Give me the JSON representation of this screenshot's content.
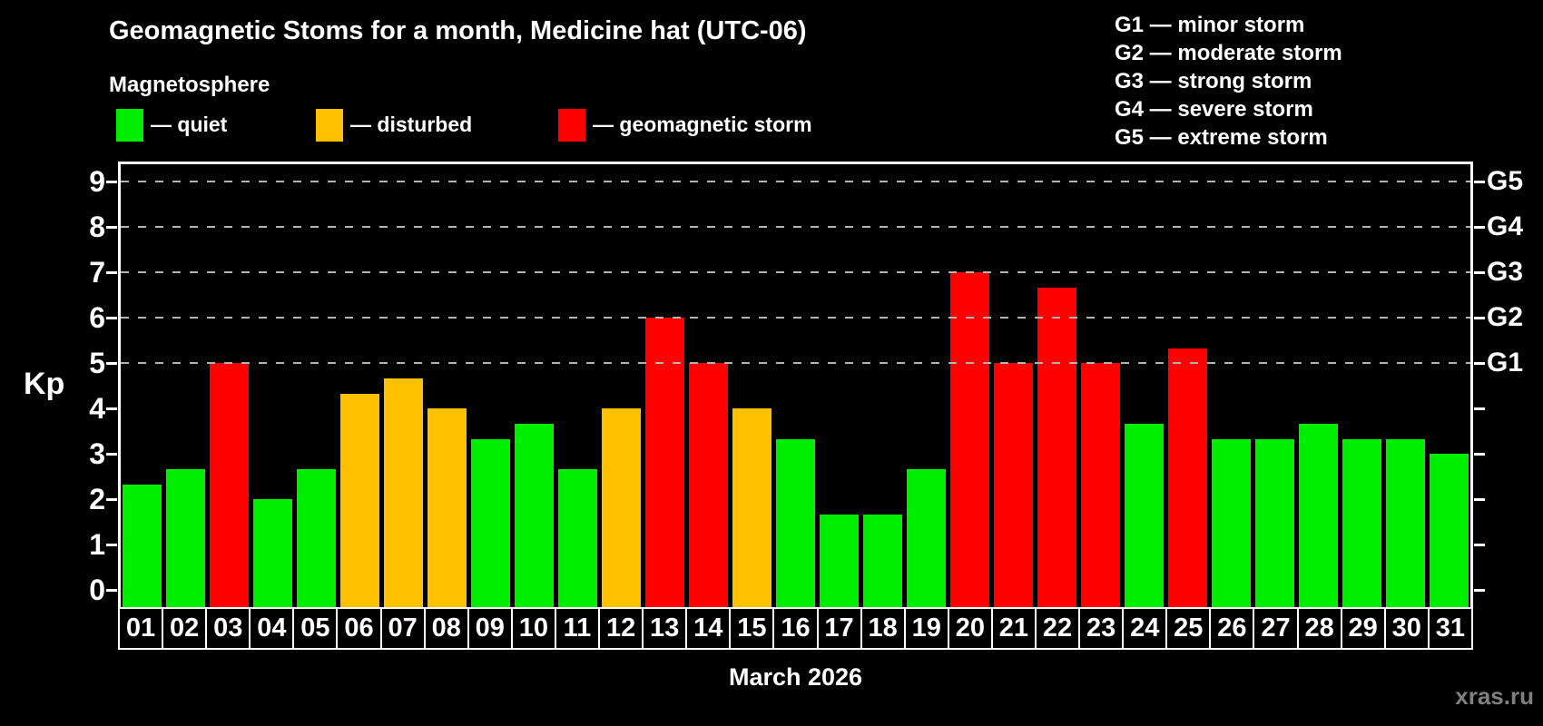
{
  "title": "Geomagnetic Stoms for a month, Medicine hat (UTC-06)",
  "subtitle": "Magnetosphere",
  "status_legend": [
    {
      "name": "quiet",
      "label": "— quiet",
      "color": "#00ee00"
    },
    {
      "name": "disturbed",
      "label": "— disturbed",
      "color": "#ffc000"
    },
    {
      "name": "storm",
      "label": "— geomagnetic storm",
      "color": "#ff0000"
    }
  ],
  "g_scale_legend": [
    "G1 — minor storm",
    "G2 — moderate storm",
    "G3 — strong storm",
    "G4 — severe storm",
    "G5 — extreme storm"
  ],
  "y_axis_label": "Kp",
  "x_axis_label": "March 2026",
  "watermark": "xras.ru",
  "chart_data": {
    "type": "bar",
    "title": "Geomagnetic Stoms for a month, Medicine hat (UTC-06)",
    "xlabel": "March 2026",
    "ylabel": "Kp",
    "ylim": [
      0,
      9
    ],
    "y_ticks": [
      0,
      1,
      2,
      3,
      4,
      5,
      6,
      7,
      8,
      9
    ],
    "gridlines_at_kp": [
      5,
      6,
      7,
      8,
      9
    ],
    "grid_style": "dashed gray horizontal, drawn only at storm levels G1–G5",
    "right_axis_labels": [
      {
        "label": "G1",
        "kp": 5
      },
      {
        "label": "G2",
        "kp": 6
      },
      {
        "label": "G3",
        "kp": 7
      },
      {
        "label": "G4",
        "kp": 8
      },
      {
        "label": "G5",
        "kp": 9
      }
    ],
    "categories": [
      "01",
      "02",
      "03",
      "04",
      "05",
      "06",
      "07",
      "08",
      "09",
      "10",
      "11",
      "12",
      "13",
      "14",
      "15",
      "16",
      "17",
      "18",
      "19",
      "20",
      "21",
      "22",
      "23",
      "24",
      "25",
      "26",
      "27",
      "28",
      "29",
      "30",
      "31"
    ],
    "series": [
      {
        "name": "Kp index",
        "values": [
          2.33,
          2.67,
          5.0,
          2.0,
          2.67,
          4.33,
          4.67,
          4.0,
          3.33,
          3.67,
          2.67,
          4.0,
          6.0,
          5.0,
          4.0,
          3.33,
          1.67,
          1.67,
          2.67,
          7.0,
          5.0,
          6.67,
          5.0,
          3.67,
          5.33,
          3.33,
          3.33,
          3.67,
          3.33,
          3.33,
          3.0
        ],
        "status": [
          "quiet",
          "quiet",
          "storm",
          "quiet",
          "quiet",
          "disturbed",
          "disturbed",
          "disturbed",
          "quiet",
          "quiet",
          "quiet",
          "disturbed",
          "storm",
          "storm",
          "disturbed",
          "quiet",
          "quiet",
          "quiet",
          "quiet",
          "storm",
          "storm",
          "storm",
          "storm",
          "quiet",
          "storm",
          "quiet",
          "quiet",
          "quiet",
          "quiet",
          "quiet",
          "quiet"
        ]
      }
    ],
    "colors": {
      "quiet": "#00ee00",
      "disturbed": "#ffc000",
      "storm": "#ff0000"
    },
    "legend_position": "top-left (status colors) and top-right (G storm scale)"
  }
}
